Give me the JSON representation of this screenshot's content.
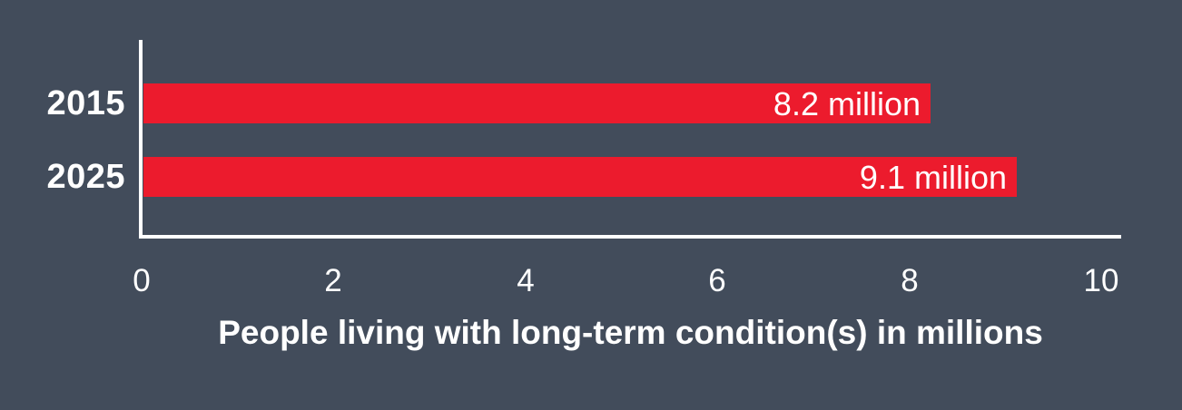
{
  "chart_data": {
    "type": "bar",
    "orientation": "horizontal",
    "title": "",
    "categories": [
      "2015",
      "2025"
    ],
    "values": [
      8.2,
      9.1
    ],
    "bar_labels": [
      "8.2 million",
      "9.1 million"
    ],
    "xlabel": "People living with long-term condition(s) in millions",
    "ylabel": "",
    "xlim": [
      0,
      10
    ],
    "xticks": [
      0,
      2,
      4,
      6,
      8,
      10
    ],
    "grid": false,
    "legend": false
  },
  "colors": {
    "background": "#424C5B",
    "bar": "#EC1B2D",
    "axis": "#FFFFFF",
    "text": "#FFFFFF"
  }
}
